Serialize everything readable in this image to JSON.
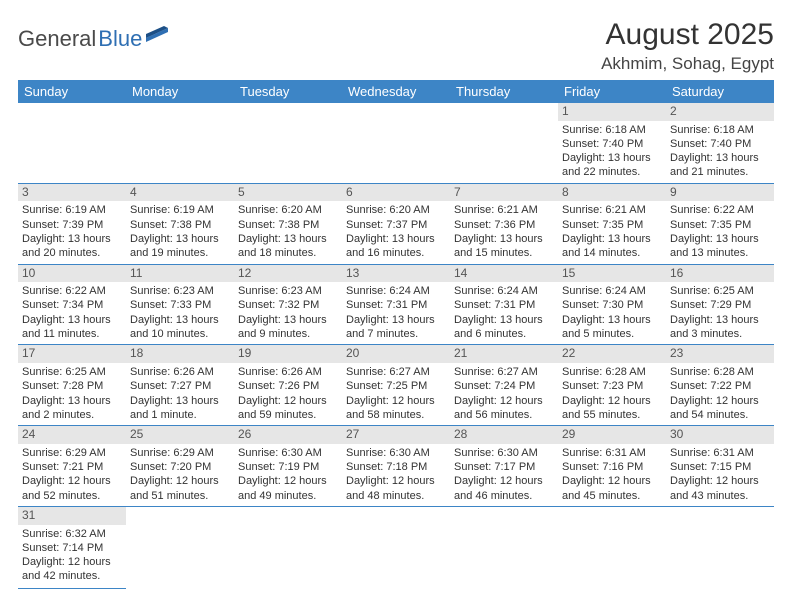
{
  "logo": {
    "part1": "General",
    "part2": "Blue"
  },
  "title": "August 2025",
  "subtitle": "Akhmim, Sohag, Egypt",
  "dayHeaders": [
    "Sunday",
    "Monday",
    "Tuesday",
    "Wednesday",
    "Thursday",
    "Friday",
    "Saturday"
  ],
  "colors": {
    "header_bg": "#3d85c6",
    "header_text": "#ffffff",
    "daynum_bg": "#e6e6e6",
    "border": "#3d85c6",
    "text": "#333333",
    "logo_gray": "#4a4a4a",
    "logo_blue": "#2f6fb3"
  },
  "weeks": [
    [
      null,
      null,
      null,
      null,
      null,
      {
        "n": "1",
        "sunrise": "Sunrise: 6:18 AM",
        "sunset": "Sunset: 7:40 PM",
        "daylight1": "Daylight: 13 hours",
        "daylight2": "and 22 minutes."
      },
      {
        "n": "2",
        "sunrise": "Sunrise: 6:18 AM",
        "sunset": "Sunset: 7:40 PM",
        "daylight1": "Daylight: 13 hours",
        "daylight2": "and 21 minutes."
      }
    ],
    [
      {
        "n": "3",
        "sunrise": "Sunrise: 6:19 AM",
        "sunset": "Sunset: 7:39 PM",
        "daylight1": "Daylight: 13 hours",
        "daylight2": "and 20 minutes."
      },
      {
        "n": "4",
        "sunrise": "Sunrise: 6:19 AM",
        "sunset": "Sunset: 7:38 PM",
        "daylight1": "Daylight: 13 hours",
        "daylight2": "and 19 minutes."
      },
      {
        "n": "5",
        "sunrise": "Sunrise: 6:20 AM",
        "sunset": "Sunset: 7:38 PM",
        "daylight1": "Daylight: 13 hours",
        "daylight2": "and 18 minutes."
      },
      {
        "n": "6",
        "sunrise": "Sunrise: 6:20 AM",
        "sunset": "Sunset: 7:37 PM",
        "daylight1": "Daylight: 13 hours",
        "daylight2": "and 16 minutes."
      },
      {
        "n": "7",
        "sunrise": "Sunrise: 6:21 AM",
        "sunset": "Sunset: 7:36 PM",
        "daylight1": "Daylight: 13 hours",
        "daylight2": "and 15 minutes."
      },
      {
        "n": "8",
        "sunrise": "Sunrise: 6:21 AM",
        "sunset": "Sunset: 7:35 PM",
        "daylight1": "Daylight: 13 hours",
        "daylight2": "and 14 minutes."
      },
      {
        "n": "9",
        "sunrise": "Sunrise: 6:22 AM",
        "sunset": "Sunset: 7:35 PM",
        "daylight1": "Daylight: 13 hours",
        "daylight2": "and 13 minutes."
      }
    ],
    [
      {
        "n": "10",
        "sunrise": "Sunrise: 6:22 AM",
        "sunset": "Sunset: 7:34 PM",
        "daylight1": "Daylight: 13 hours",
        "daylight2": "and 11 minutes."
      },
      {
        "n": "11",
        "sunrise": "Sunrise: 6:23 AM",
        "sunset": "Sunset: 7:33 PM",
        "daylight1": "Daylight: 13 hours",
        "daylight2": "and 10 minutes."
      },
      {
        "n": "12",
        "sunrise": "Sunrise: 6:23 AM",
        "sunset": "Sunset: 7:32 PM",
        "daylight1": "Daylight: 13 hours",
        "daylight2": "and 9 minutes."
      },
      {
        "n": "13",
        "sunrise": "Sunrise: 6:24 AM",
        "sunset": "Sunset: 7:31 PM",
        "daylight1": "Daylight: 13 hours",
        "daylight2": "and 7 minutes."
      },
      {
        "n": "14",
        "sunrise": "Sunrise: 6:24 AM",
        "sunset": "Sunset: 7:31 PM",
        "daylight1": "Daylight: 13 hours",
        "daylight2": "and 6 minutes."
      },
      {
        "n": "15",
        "sunrise": "Sunrise: 6:24 AM",
        "sunset": "Sunset: 7:30 PM",
        "daylight1": "Daylight: 13 hours",
        "daylight2": "and 5 minutes."
      },
      {
        "n": "16",
        "sunrise": "Sunrise: 6:25 AM",
        "sunset": "Sunset: 7:29 PM",
        "daylight1": "Daylight: 13 hours",
        "daylight2": "and 3 minutes."
      }
    ],
    [
      {
        "n": "17",
        "sunrise": "Sunrise: 6:25 AM",
        "sunset": "Sunset: 7:28 PM",
        "daylight1": "Daylight: 13 hours",
        "daylight2": "and 2 minutes."
      },
      {
        "n": "18",
        "sunrise": "Sunrise: 6:26 AM",
        "sunset": "Sunset: 7:27 PM",
        "daylight1": "Daylight: 13 hours",
        "daylight2": "and 1 minute."
      },
      {
        "n": "19",
        "sunrise": "Sunrise: 6:26 AM",
        "sunset": "Sunset: 7:26 PM",
        "daylight1": "Daylight: 12 hours",
        "daylight2": "and 59 minutes."
      },
      {
        "n": "20",
        "sunrise": "Sunrise: 6:27 AM",
        "sunset": "Sunset: 7:25 PM",
        "daylight1": "Daylight: 12 hours",
        "daylight2": "and 58 minutes."
      },
      {
        "n": "21",
        "sunrise": "Sunrise: 6:27 AM",
        "sunset": "Sunset: 7:24 PM",
        "daylight1": "Daylight: 12 hours",
        "daylight2": "and 56 minutes."
      },
      {
        "n": "22",
        "sunrise": "Sunrise: 6:28 AM",
        "sunset": "Sunset: 7:23 PM",
        "daylight1": "Daylight: 12 hours",
        "daylight2": "and 55 minutes."
      },
      {
        "n": "23",
        "sunrise": "Sunrise: 6:28 AM",
        "sunset": "Sunset: 7:22 PM",
        "daylight1": "Daylight: 12 hours",
        "daylight2": "and 54 minutes."
      }
    ],
    [
      {
        "n": "24",
        "sunrise": "Sunrise: 6:29 AM",
        "sunset": "Sunset: 7:21 PM",
        "daylight1": "Daylight: 12 hours",
        "daylight2": "and 52 minutes."
      },
      {
        "n": "25",
        "sunrise": "Sunrise: 6:29 AM",
        "sunset": "Sunset: 7:20 PM",
        "daylight1": "Daylight: 12 hours",
        "daylight2": "and 51 minutes."
      },
      {
        "n": "26",
        "sunrise": "Sunrise: 6:30 AM",
        "sunset": "Sunset: 7:19 PM",
        "daylight1": "Daylight: 12 hours",
        "daylight2": "and 49 minutes."
      },
      {
        "n": "27",
        "sunrise": "Sunrise: 6:30 AM",
        "sunset": "Sunset: 7:18 PM",
        "daylight1": "Daylight: 12 hours",
        "daylight2": "and 48 minutes."
      },
      {
        "n": "28",
        "sunrise": "Sunrise: 6:30 AM",
        "sunset": "Sunset: 7:17 PM",
        "daylight1": "Daylight: 12 hours",
        "daylight2": "and 46 minutes."
      },
      {
        "n": "29",
        "sunrise": "Sunrise: 6:31 AM",
        "sunset": "Sunset: 7:16 PM",
        "daylight1": "Daylight: 12 hours",
        "daylight2": "and 45 minutes."
      },
      {
        "n": "30",
        "sunrise": "Sunrise: 6:31 AM",
        "sunset": "Sunset: 7:15 PM",
        "daylight1": "Daylight: 12 hours",
        "daylight2": "and 43 minutes."
      }
    ],
    [
      {
        "n": "31",
        "sunrise": "Sunrise: 6:32 AM",
        "sunset": "Sunset: 7:14 PM",
        "daylight1": "Daylight: 12 hours",
        "daylight2": "and 42 minutes."
      },
      null,
      null,
      null,
      null,
      null,
      null
    ]
  ]
}
